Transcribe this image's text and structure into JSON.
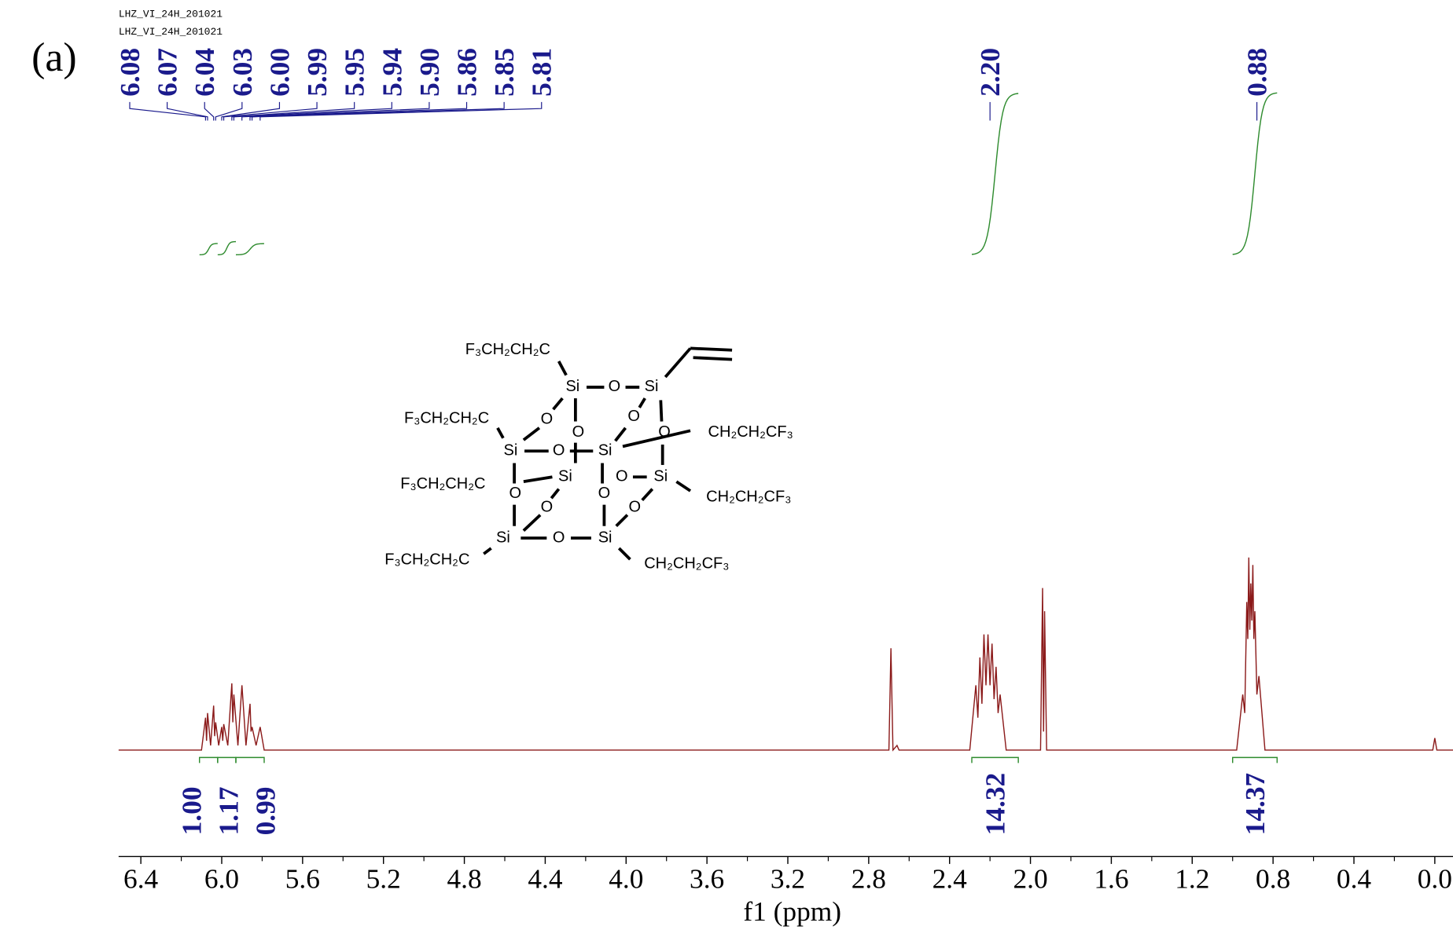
{
  "header": {
    "files": [
      "LHZ_VI_24H_201021",
      "LHZ_VI_24H_201021"
    ],
    "panel": "(a)"
  },
  "chart_data": {
    "type": "nmr",
    "x_label": "f1 (ppm)",
    "xlim": [
      6.51,
      -0.09
    ],
    "ylim": [
      0,
      220
    ],
    "xticks": [
      6.4,
      {
        "value": 6,
        "label": "6.0"
      },
      5.6,
      5.2,
      4.8,
      4.4,
      {
        "value": 4,
        "label": "4.0"
      },
      3.6,
      3.2,
      2.8,
      2.4,
      {
        "value": 2,
        "label": "2.0"
      },
      1.6,
      1.2,
      0.8,
      0.4,
      {
        "value": 0,
        "label": "0.0"
      }
    ],
    "color": "#8b1a1a",
    "x": [
      6.51,
      6.1,
      6.08,
      6.075,
      6.07,
      6.055,
      6.04,
      6.035,
      6.03,
      6.015,
      6.0,
      5.995,
      5.99,
      5.97,
      5.95,
      5.945,
      5.94,
      5.92,
      5.9,
      5.88,
      5.86,
      5.855,
      5.85,
      5.83,
      5.81,
      5.79,
      2.7,
      2.69,
      2.68,
      2.66,
      2.65,
      2.3,
      2.27,
      2.26,
      2.25,
      2.24,
      2.23,
      2.22,
      2.21,
      2.2,
      2.19,
      2.18,
      2.17,
      2.16,
      2.15,
      2.12,
      1.95,
      1.94,
      1.935,
      1.93,
      1.92,
      0.98,
      0.95,
      0.94,
      0.93,
      0.925,
      0.92,
      0.915,
      0.91,
      0.905,
      0.9,
      0.895,
      0.89,
      0.88,
      0.87,
      0.84,
      0.01,
      0.0,
      -0.01,
      -0.09
    ],
    "values": [
      0,
      0,
      35,
      10,
      40,
      5,
      48,
      15,
      30,
      5,
      25,
      10,
      28,
      5,
      72,
      30,
      60,
      5,
      70,
      5,
      50,
      20,
      25,
      5,
      25,
      0,
      0,
      110,
      0,
      5,
      0,
      0,
      70,
      35,
      100,
      50,
      125,
      70,
      125,
      70,
      115,
      55,
      90,
      40,
      60,
      0,
      0,
      175,
      20,
      150,
      0,
      0,
      60,
      40,
      160,
      120,
      208,
      130,
      180,
      140,
      200,
      120,
      150,
      60,
      80,
      0,
      0,
      13,
      0,
      0
    ],
    "peaks": {
      "values": [
        6.08,
        6.07,
        6.04,
        6.03,
        6.0,
        5.99,
        5.95,
        5.94,
        5.9,
        5.86,
        5.85,
        5.81,
        2.2,
        0.88
      ],
      "value_labels": [
        "6.08",
        "6.07",
        "6.04",
        "6.03",
        "6.00",
        "5.99",
        "5.95",
        "5.94",
        "5.90",
        "5.86",
        "5.85",
        "5.81",
        "2.20",
        "0.88"
      ],
      "color": "#1a1a8c"
    },
    "integrals": {
      "ranges": [
        [
          6.11,
          6.02
        ],
        [
          6.02,
          5.93
        ],
        [
          5.93,
          5.79
        ],
        [
          2.29,
          2.06
        ],
        [
          1.0,
          0.78
        ]
      ],
      "values": [
        1,
        1.17,
        0.99,
        14.32,
        14.37
      ],
      "value_labels": [
        "1.00",
        "1.17",
        "0.99",
        "14.32",
        "14.37"
      ],
      "color": "#2e8b2e"
    }
  },
  "structure": {
    "chains": [
      "F₃CH₂CH₂C",
      "F₃CH₂CH₂C",
      "F₃CH₂CH₂C",
      "F₃CH₂CH₂C",
      "CH₂CH₂CF₃",
      "CH₂CH₂CF₃",
      "CH₂CH₂CF₃"
    ],
    "si": [
      "Si",
      "Si",
      "Si",
      "Si",
      "Si",
      "Si",
      "Si",
      "Si"
    ],
    "o": [
      "O",
      "O",
      "O",
      "O",
      "O",
      "O",
      "O",
      "O",
      "O",
      "O",
      "O",
      "O"
    ]
  }
}
